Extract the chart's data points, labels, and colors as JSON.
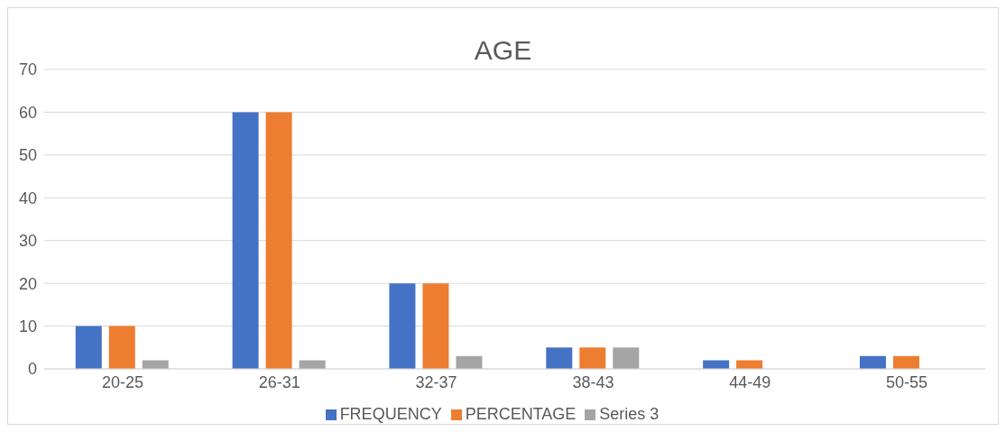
{
  "chart_data": {
    "type": "bar",
    "title": "AGE",
    "categories": [
      "20-25",
      "26-31",
      "32-37",
      "38-43",
      "44-49",
      "50-55"
    ],
    "series": [
      {
        "name": "FREQUENCY",
        "color": "#4472c4",
        "values": [
          10,
          60,
          20,
          5,
          2,
          3
        ]
      },
      {
        "name": "PERCENTAGE",
        "color": "#ed7d31",
        "values": [
          10,
          60,
          20,
          5,
          2,
          3
        ]
      },
      {
        "name": "Series 3",
        "color": "#a5a5a5",
        "values": [
          2,
          2,
          3,
          5,
          0,
          0
        ]
      }
    ],
    "ylim": [
      0,
      70
    ],
    "yticks": [
      0,
      10,
      20,
      30,
      40,
      50,
      60,
      70
    ],
    "grid": "y",
    "legend": "bottom"
  }
}
